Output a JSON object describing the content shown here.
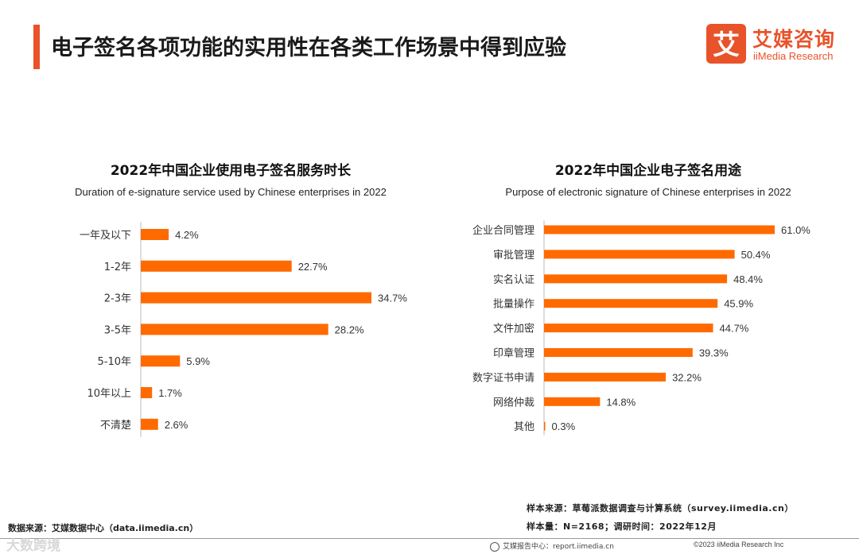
{
  "header": {
    "title": "电子签名各项功能的实用性在各类工作场景中得到应验",
    "logo_cn": "艾媒咨询",
    "logo_en": "iiMedia Research",
    "logo_mark_char": "艾"
  },
  "colors": {
    "accent": "#e8532a",
    "bar": "#ff6a00",
    "axis": "#bbbbbb"
  },
  "chart_data": [
    {
      "type": "bar",
      "orientation": "horizontal",
      "title": "2022年中国企业使用电子签名服务时长",
      "subtitle": "Duration of e-signature service used by Chinese enterprises in 2022",
      "categories": [
        "一年及以下",
        "1-2年",
        "2-3年",
        "3-5年",
        "5-10年",
        "10年以上",
        "不清楚"
      ],
      "values": [
        4.2,
        22.7,
        34.7,
        28.2,
        5.9,
        1.7,
        2.6
      ],
      "labels": [
        "4.2%",
        "22.7%",
        "34.7%",
        "28.2%",
        "5.9%",
        "1.7%",
        "2.6%"
      ],
      "unit": "%",
      "xlim": [
        0,
        34.7
      ]
    },
    {
      "type": "bar",
      "orientation": "horizontal",
      "title": "2022年中国企业电子签名用途",
      "subtitle": "Purpose of electronic signature of Chinese enterprises in 2022",
      "categories": [
        "企业合同管理",
        "审批管理",
        "实名认证",
        "批量操作",
        "文件加密",
        "印章管理",
        "数字证书申请",
        "网络仲裁",
        "其他"
      ],
      "values": [
        61.0,
        50.4,
        48.4,
        45.9,
        44.7,
        39.3,
        32.2,
        14.8,
        0.3
      ],
      "labels": [
        "61.0%",
        "50.4%",
        "48.4%",
        "45.9%",
        "44.7%",
        "39.3%",
        "32.2%",
        "14.8%",
        "0.3%"
      ],
      "unit": "%",
      "xlim": [
        0,
        61.0
      ]
    }
  ],
  "footer": {
    "data_source": "数据来源：艾媒数据中心（data.iimedia.cn）",
    "sample_source": "样本来源：草莓派数据调查与计算系统（survey.iimedia.cn）",
    "sample_size": "样本量：N=2168；调研时间：2022年12月",
    "report_center": "艾媒报告中心：report.iimedia.cn",
    "copyright": "©2023  iiMedia Research  Inc",
    "watermark": "大数跨境"
  }
}
